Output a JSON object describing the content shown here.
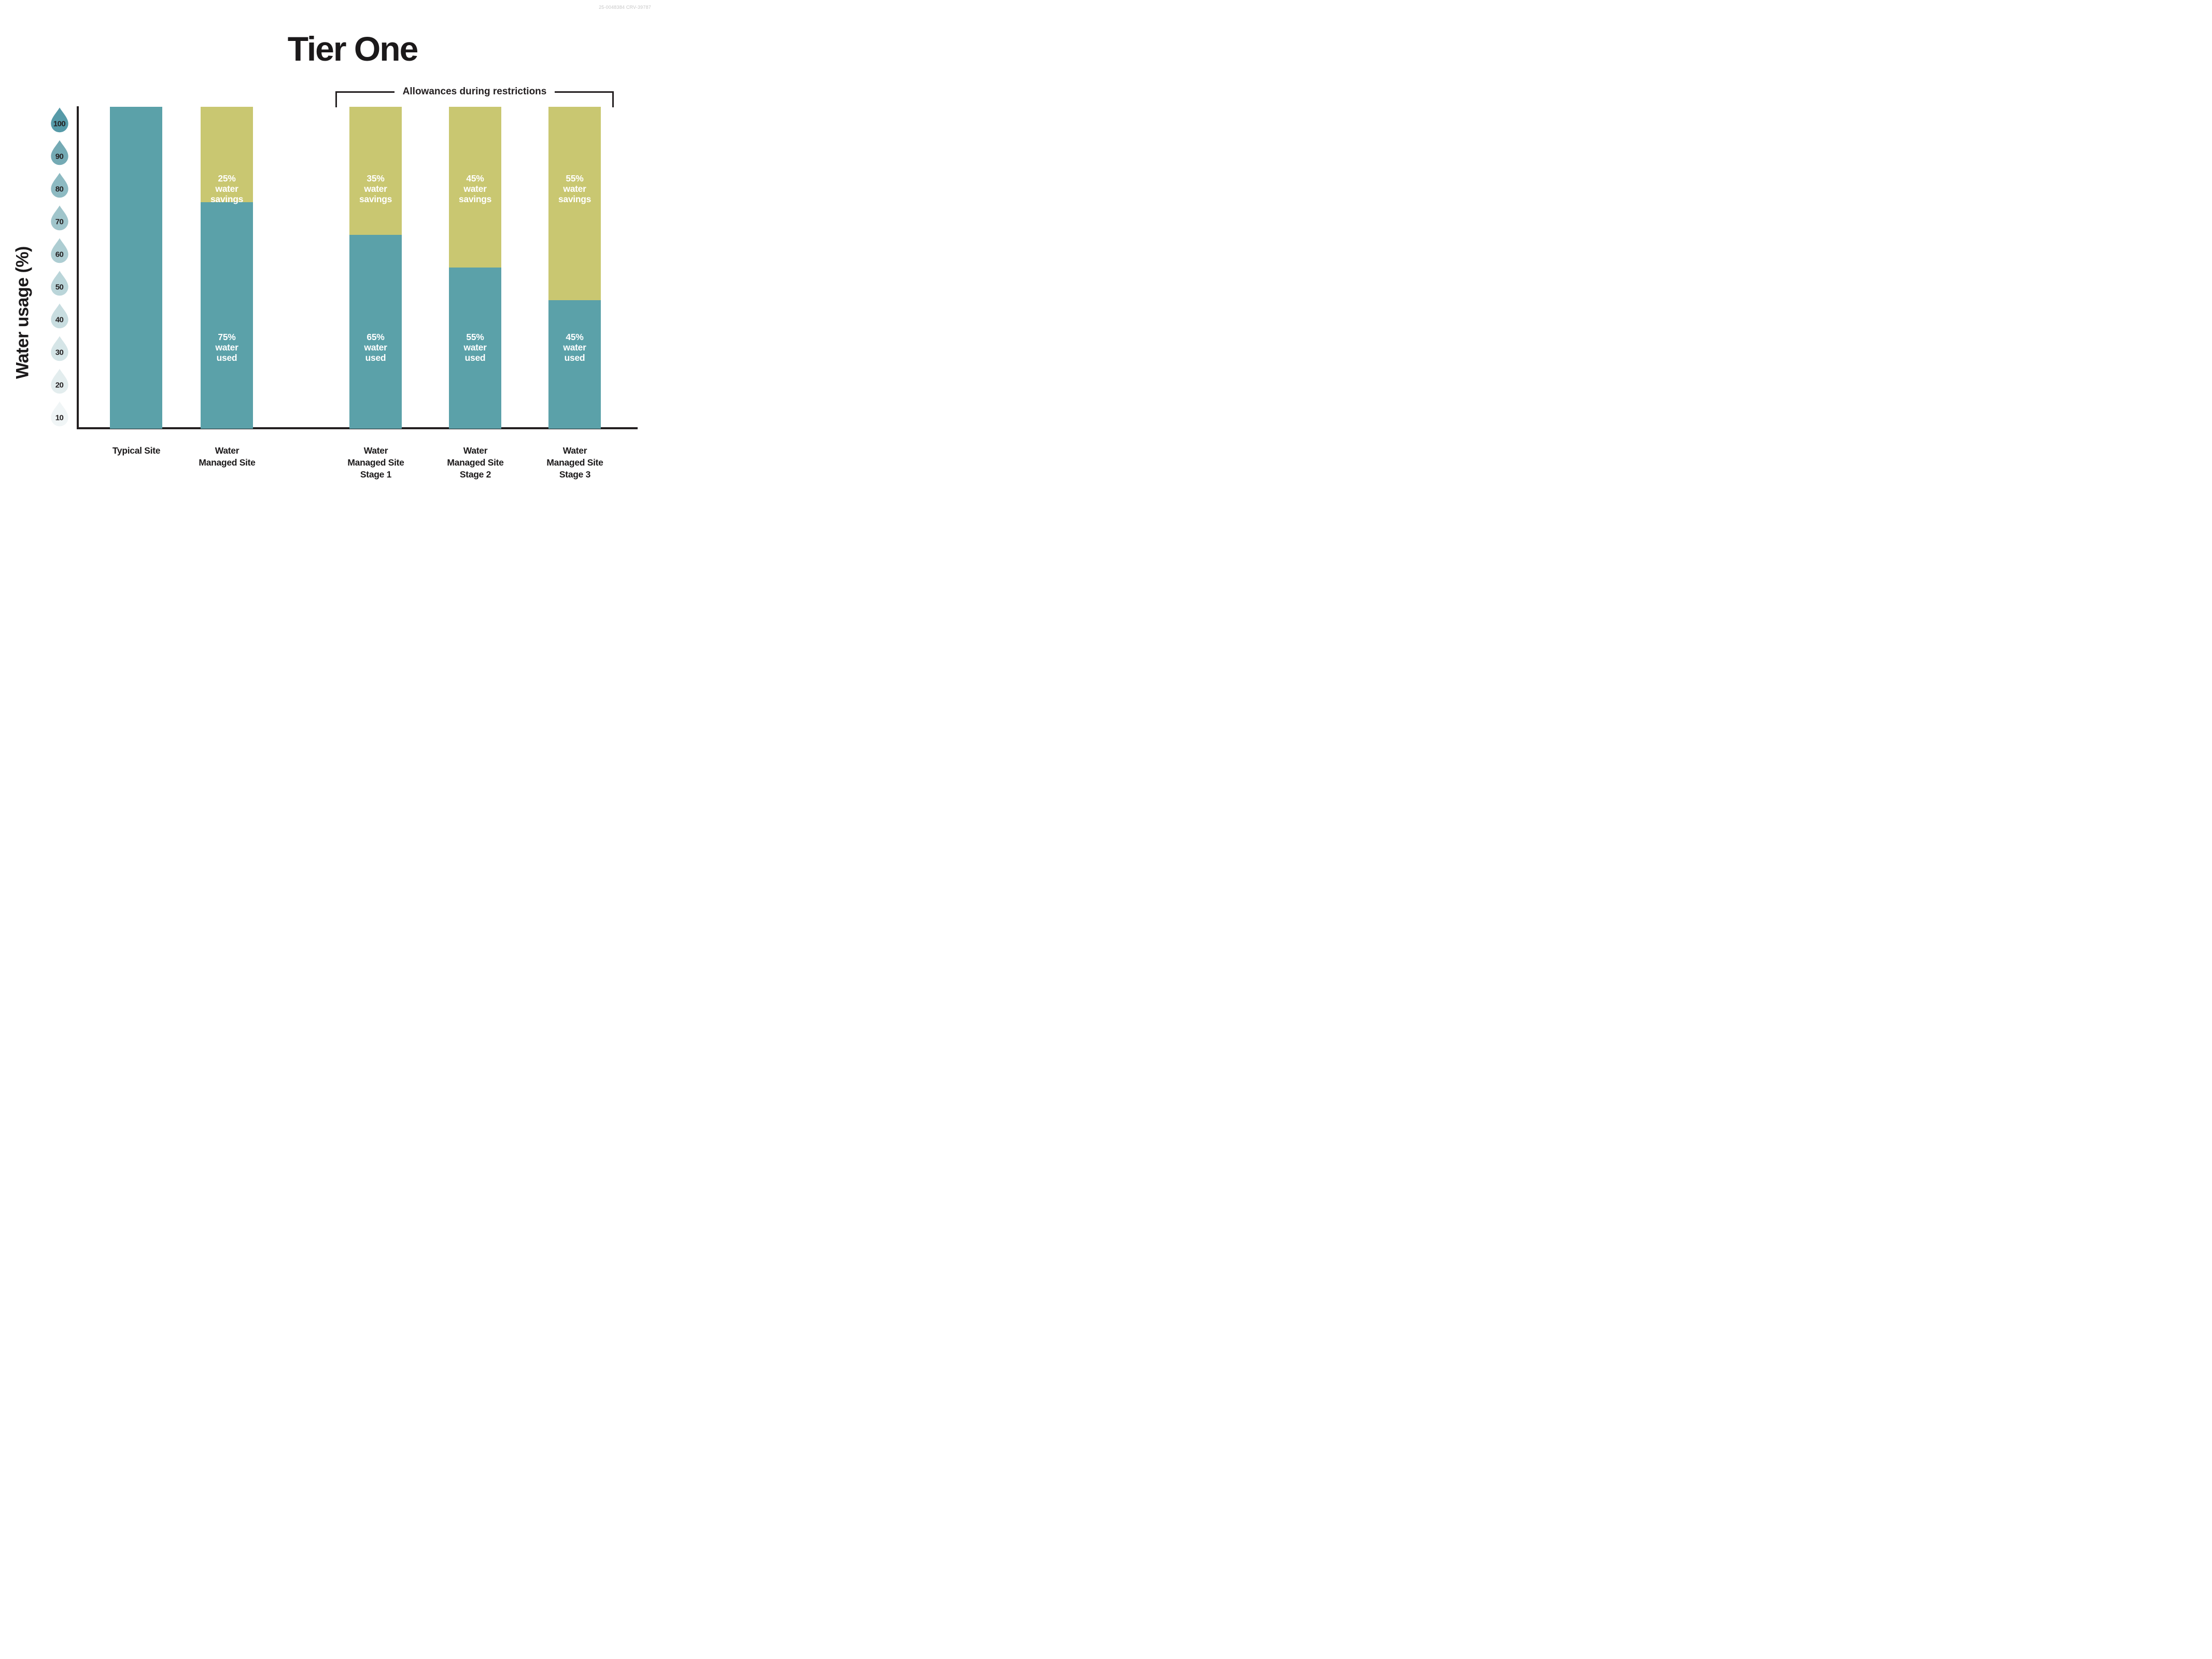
{
  "ref_code": "25-0048384 CRV-39787",
  "title": "Tier One",
  "bracket_label": "Allowances during restrictions",
  "ink_color": "#231F20",
  "y_axis": {
    "label": "Water usage (%)",
    "ticks": [
      {
        "value": 100,
        "color": "#569AA8"
      },
      {
        "value": 90,
        "color": "#74AAB4"
      },
      {
        "value": 80,
        "color": "#8DBAC2"
      },
      {
        "value": 70,
        "color": "#A0C5CB"
      },
      {
        "value": 60,
        "color": "#ADCDD2"
      },
      {
        "value": 50,
        "color": "#BAD5D9"
      },
      {
        "value": 40,
        "color": "#C8DDE0"
      },
      {
        "value": 30,
        "color": "#D5E5E7"
      },
      {
        "value": 20,
        "color": "#E3EDEE"
      },
      {
        "value": 10,
        "color": "#F0F5F6"
      }
    ]
  },
  "x_labels": [
    "Typical Site",
    "Water\nManaged Site",
    "Water\nManaged Site\nStage 1",
    "Water\nManaged Site\nStage 2",
    "Water\nManaged Site\nStage 3"
  ],
  "bars": [
    {
      "savings_label": "",
      "used_label": ""
    },
    {
      "savings_label": "25%\nwater\nsavings",
      "used_label": "75%\nwater\nused"
    },
    {
      "savings_label": "35%\nwater\nsavings",
      "used_label": "65%\nwater\nused"
    },
    {
      "savings_label": "45%\nwater\nsavings",
      "used_label": "55%\nwater\nused"
    },
    {
      "savings_label": "55%\nwater\nsavings",
      "used_label": "45%\nwater\nused"
    }
  ],
  "chart_data": {
    "type": "bar",
    "stacked": true,
    "title": "Tier One",
    "ylabel": "Water usage (%)",
    "ylim": [
      0,
      100
    ],
    "yticks": [
      100,
      90,
      80,
      70,
      60,
      50,
      40,
      30,
      20,
      10
    ],
    "categories": [
      "Typical Site",
      "Water Managed Site",
      "Water Managed Site Stage 1",
      "Water Managed Site Stage 2",
      "Water Managed Site Stage 3"
    ],
    "series": [
      {
        "name": "water used",
        "color": "#5BA1A9",
        "values": [
          100,
          75,
          65,
          55,
          45
        ]
      },
      {
        "name": "water savings",
        "color": "#C9C771",
        "values": [
          0,
          25,
          35,
          45,
          55
        ]
      }
    ],
    "annotation": {
      "label": "Allowances during restrictions",
      "applies_to_categories": [
        2,
        3,
        4
      ]
    },
    "legend": "none",
    "grid": false
  }
}
